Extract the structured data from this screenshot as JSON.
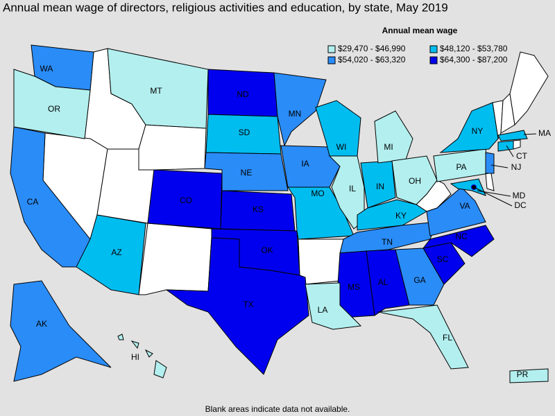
{
  "title": "Annual mean wage of directors, religious activities and education, by state, May 2019",
  "legend": {
    "title": "Annual mean wage",
    "items": [
      {
        "label": "$29,470 - $46,990",
        "color": "#b3efef"
      },
      {
        "label": "$48,120 - $53,780",
        "color": "#00bdf0"
      },
      {
        "label": "$54,020 - $63,320",
        "color": "#2a8cf7"
      },
      {
        "label": "$64,300 - $87,200",
        "color": "#0000ee"
      }
    ]
  },
  "states": [
    {
      "label": "WA",
      "color": "#2a8cf7"
    },
    {
      "label": "OR",
      "color": "#b3efef"
    },
    {
      "label": "CA",
      "color": "#2a8cf7"
    },
    {
      "label": "MT",
      "color": "#b3efef"
    },
    {
      "label": "ND",
      "color": "#0000ee"
    },
    {
      "label": "SD",
      "color": "#00bdf0"
    },
    {
      "label": "NE",
      "color": "#2a8cf7"
    },
    {
      "label": "KS",
      "color": "#0000ee"
    },
    {
      "label": "CO",
      "color": "#0000ee"
    },
    {
      "label": "OK",
      "color": "#0000ee"
    },
    {
      "label": "TX",
      "color": "#0000ee"
    },
    {
      "label": "MN",
      "color": "#2a8cf7"
    },
    {
      "label": "IA",
      "color": "#2a8cf7"
    },
    {
      "label": "MO",
      "color": "#00bdf0"
    },
    {
      "label": "WI",
      "color": "#00bdf0"
    },
    {
      "label": "IL",
      "color": "#b3efef"
    },
    {
      "label": "IN",
      "color": "#00bdf0"
    },
    {
      "label": "MI",
      "color": "#b3efef"
    },
    {
      "label": "OH",
      "color": "#b3efef"
    },
    {
      "label": "KY",
      "color": "#00bdf0"
    },
    {
      "label": "TN",
      "color": "#2a8cf7"
    },
    {
      "label": "AL",
      "color": "#0000ee"
    },
    {
      "label": "MS",
      "color": "#0000ee"
    },
    {
      "label": "LA",
      "color": "#b3efef"
    },
    {
      "label": "GA",
      "color": "#2a8cf7"
    },
    {
      "label": "FL",
      "color": "#b3efef"
    },
    {
      "label": "SC",
      "color": "#0000ee"
    },
    {
      "label": "NC",
      "color": "#0000ee"
    },
    {
      "label": "VA",
      "color": "#2a8cf7"
    },
    {
      "label": "PA",
      "color": "#b3efef"
    },
    {
      "label": "NY",
      "color": "#00bdf0"
    },
    {
      "label": "MA",
      "color": "#00bdf0"
    },
    {
      "label": "CT",
      "color": "#00bdf0"
    },
    {
      "label": "NJ",
      "color": "#2a8cf7"
    },
    {
      "label": "MD",
      "color": "#00bdf0"
    },
    {
      "label": "DC",
      "color": "#0000ee"
    },
    {
      "label": "AZ",
      "color": "#00bdf0"
    },
    {
      "label": "AK",
      "color": "#2a8cf7"
    },
    {
      "label": "HI",
      "color": "#b3efef"
    },
    {
      "label": "PR",
      "color": "#b3efef"
    }
  ],
  "note": "Blank areas indicate data not available."
}
